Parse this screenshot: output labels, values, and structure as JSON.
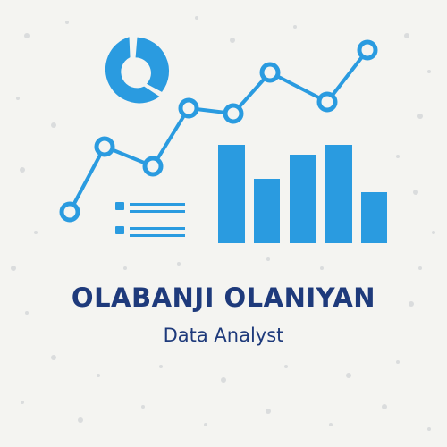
{
  "brand": {
    "name": "OLABANJI OLANIYAN",
    "title": "Data Analyst"
  },
  "colors": {
    "background": "#f4f4f1",
    "accent_blue": "#2a9be0",
    "text_navy": "#1e3a7b",
    "dot_grey": "#d6d8da"
  },
  "icons": [
    "donut-chart-icon",
    "line-chart-icon",
    "bar-chart-icon",
    "list-icon"
  ]
}
